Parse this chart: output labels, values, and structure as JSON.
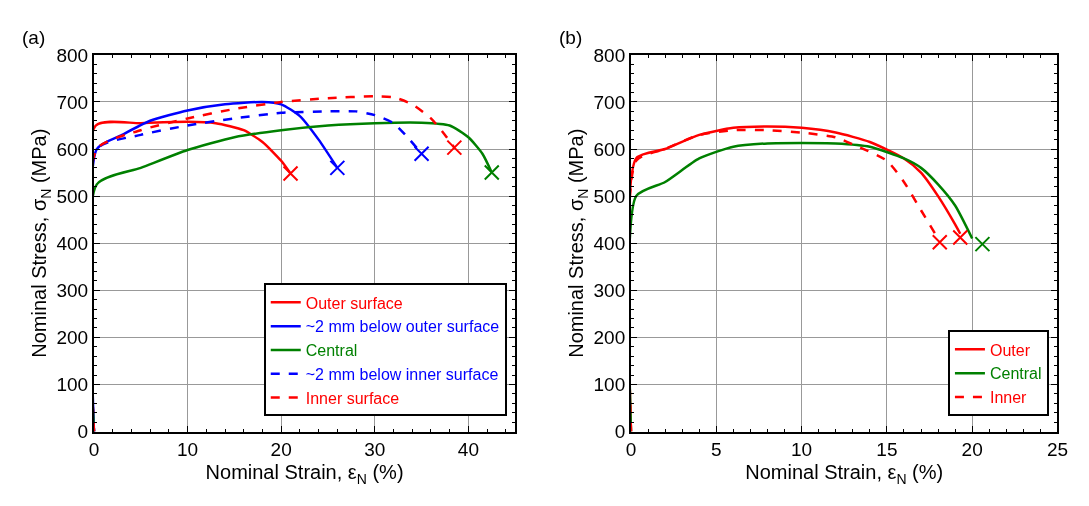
{
  "chart_data": [
    {
      "type": "line",
      "title": "(a)",
      "xlabel": "Nominal Strain, ε$_{N}$ (%)",
      "ylabel": "Nominal Stress, σ$_{N}$ (MPa)",
      "xlim": [
        0,
        45
      ],
      "xticks": [
        0,
        10,
        20,
        30,
        40
      ],
      "ylim": [
        0,
        800
      ],
      "yticks": [
        0,
        100,
        200,
        300,
        400,
        500,
        600,
        700,
        800
      ],
      "grid": true,
      "legend": "bottom right",
      "marker": "none",
      "series": [
        {
          "name": "Outer surface",
          "color": "#ff0000",
          "line_style": "solid",
          "x": [
            0,
            0.2,
            5,
            10,
            13,
            16,
            18,
            20,
            21
          ],
          "values": [
            0,
            650,
            655,
            658,
            655,
            640,
            615,
            575,
            548
          ]
        },
        {
          "name": "~2 mm below outer surface",
          "color": "#0000ff",
          "line_style": "solid",
          "x": [
            0,
            0.3,
            3,
            6,
            10,
            14,
            18,
            20,
            22,
            24,
            26
          ],
          "values": [
            0,
            600,
            630,
            660,
            682,
            695,
            700,
            695,
            670,
            620,
            560
          ]
        },
        {
          "name": "Central",
          "color": "#008000",
          "line_style": "solid",
          "x": [
            0,
            0.3,
            5,
            10,
            15,
            20,
            25,
            30,
            35,
            38,
            40,
            41.5,
            42.5
          ],
          "values": [
            0,
            525,
            560,
            598,
            625,
            640,
            650,
            655,
            656,
            650,
            625,
            590,
            550
          ]
        },
        {
          "name": "~2 mm below inner surface",
          "color": "#0000ff",
          "line_style": "dashed",
          "x": [
            0,
            0.3,
            5,
            10,
            15,
            20,
            25,
            28,
            30,
            32,
            33.5,
            35
          ],
          "values": [
            0,
            600,
            630,
            650,
            665,
            677,
            680,
            680,
            672,
            655,
            625,
            590
          ]
        },
        {
          "name": "Inner surface",
          "color": "#ff0000",
          "line_style": "dashed",
          "x": [
            0,
            0.3,
            5,
            10,
            15,
            20,
            25,
            30,
            32,
            34,
            36,
            37.5,
            38.5
          ],
          "values": [
            0,
            600,
            640,
            665,
            685,
            700,
            708,
            712,
            710,
            695,
            665,
            630,
            603
          ]
        },
        {
          "type": "scatter",
          "marker": "cross",
          "color": "#ff0000",
          "x": [
            21,
            38.5
          ],
          "values": [
            548,
            603
          ]
        },
        {
          "type": "scatter",
          "marker": "cross",
          "color": "#0000ff",
          "x": [
            26,
            35
          ],
          "values": [
            560,
            590
          ]
        },
        {
          "type": "scatter",
          "marker": "cross",
          "color": "#008000",
          "x": [
            42.5
          ],
          "values": [
            550
          ]
        }
      ]
    },
    {
      "type": "line",
      "title": "(b)",
      "xlabel": "Nominal Strain, ε$_{N}$ (%)",
      "ylabel": "Nominal Stress, σ$_{N}$ (MPa)",
      "xlim": [
        0,
        25
      ],
      "xticks": [
        0,
        5,
        10,
        15,
        20,
        25
      ],
      "ylim": [
        0,
        800
      ],
      "yticks": [
        0,
        100,
        200,
        300,
        400,
        500,
        600,
        700,
        800
      ],
      "grid": true,
      "legend": "bottom right",
      "marker": "none",
      "series": [
        {
          "name": "Outer",
          "color": "#ff0000",
          "line_style": "solid",
          "x": [
            0,
            0.3,
            2,
            4,
            6,
            8,
            10,
            12,
            14,
            16,
            17,
            18,
            19,
            19.3
          ],
          "values": [
            0,
            580,
            600,
            630,
            645,
            648,
            645,
            635,
            615,
            580,
            550,
            500,
            440,
            420
          ]
        },
        {
          "name": "Central",
          "color": "#008000",
          "line_style": "solid",
          "x": [
            0,
            0.3,
            2,
            4,
            6,
            8,
            10,
            12,
            14,
            16,
            17,
            18,
            19,
            20
          ],
          "values": [
            0,
            500,
            530,
            580,
            605,
            612,
            613,
            612,
            605,
            580,
            560,
            525,
            480,
            410
          ]
        },
        {
          "name": "Inner",
          "color": "#ff0000",
          "line_style": "dashed",
          "x": [
            0,
            0.3,
            2,
            4,
            6,
            8,
            10,
            12,
            13,
            15,
            16,
            17,
            18
          ],
          "values": [
            0,
            575,
            600,
            630,
            640,
            640,
            635,
            625,
            610,
            575,
            530,
            470,
            410
          ]
        },
        {
          "type": "scatter",
          "marker": "cross",
          "color": "#ff0000",
          "x": [
            18.1,
            19.3
          ],
          "values": [
            402,
            412
          ]
        },
        {
          "type": "scatter",
          "marker": "cross",
          "color": "#008000",
          "x": [
            20.6
          ],
          "values": [
            398
          ]
        }
      ]
    }
  ]
}
